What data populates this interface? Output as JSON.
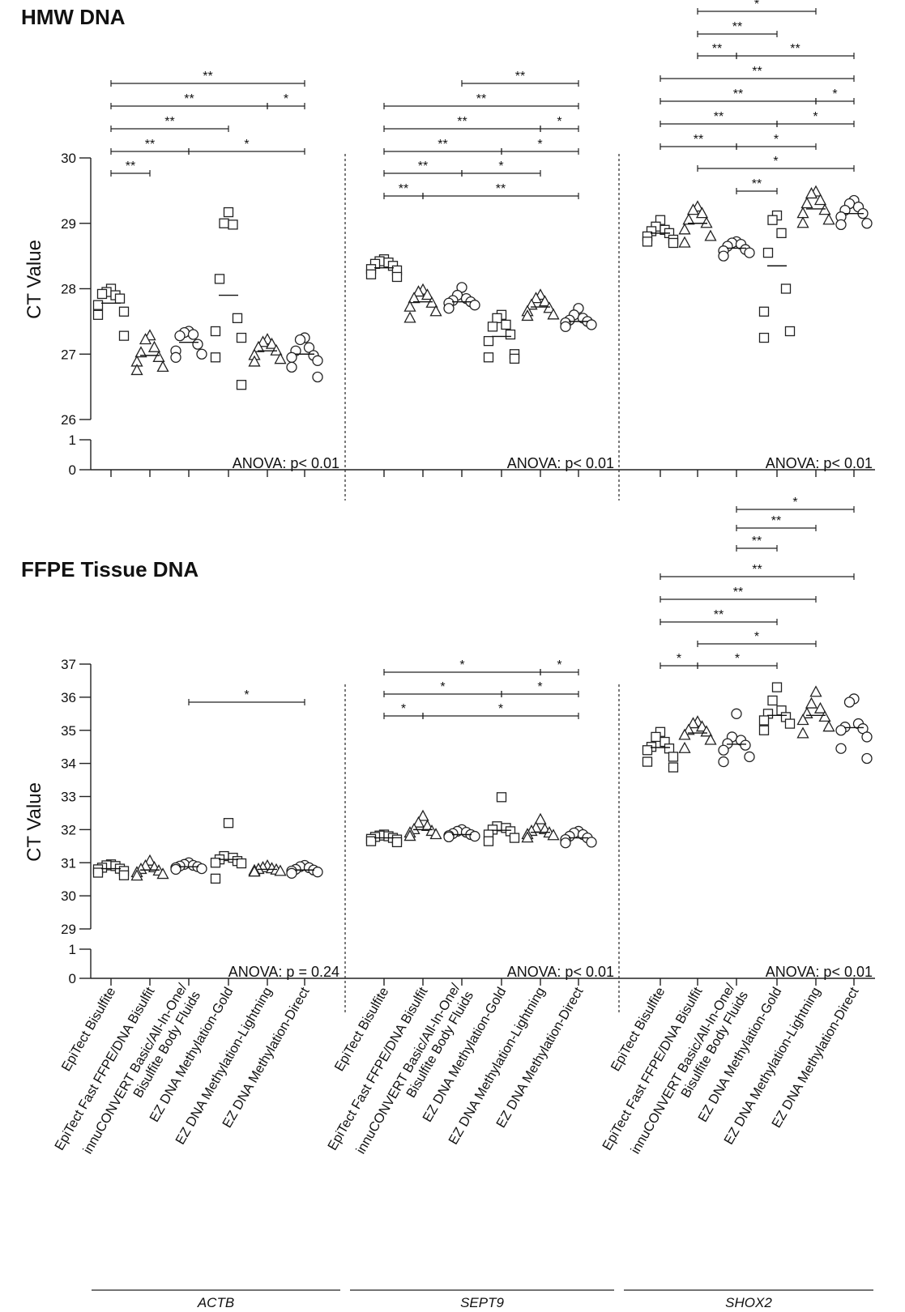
{
  "chart_data": [
    {
      "type": "scatter",
      "title": "HMW DNA",
      "ylabel": "CT Value",
      "yticks_upper": [
        26,
        27,
        28,
        29,
        30
      ],
      "yticks_lower": [
        0,
        1
      ],
      "ylim_upper": [
        26,
        30
      ],
      "genes": [
        {
          "name": "ACTB",
          "anova": "ANOVA: p< 0.01",
          "groups": [
            {
              "marker": "square",
              "mean": 27.78,
              "values": [
                28.0,
                27.95,
                27.9,
                27.92,
                27.85,
                27.75,
                27.65,
                27.6,
                27.28
              ]
            },
            {
              "marker": "triangle",
              "mean": 26.98,
              "values": [
                27.28,
                27.22,
                27.1,
                27.02,
                26.95,
                26.88,
                26.8,
                26.75
              ]
            },
            {
              "marker": "circle",
              "mean": 27.18,
              "values": [
                27.35,
                27.33,
                27.3,
                27.28,
                27.15,
                27.05,
                27.0,
                26.95
              ]
            },
            {
              "marker": "square",
              "mean": 27.9,
              "values": [
                29.17,
                29.0,
                28.98,
                28.15,
                27.55,
                27.35,
                27.25,
                26.95,
                26.53
              ]
            },
            {
              "marker": "triangle",
              "mean": 27.05,
              "values": [
                27.22,
                27.18,
                27.15,
                27.1,
                27.05,
                26.98,
                26.92,
                26.88
              ]
            },
            {
              "marker": "circle",
              "mean": 27.0,
              "values": [
                27.25,
                27.22,
                27.1,
                27.05,
                26.98,
                26.95,
                26.9,
                26.8,
                26.65
              ]
            }
          ],
          "brackets": [
            {
              "from": 1,
              "to": 2,
              "label": "**"
            },
            {
              "from": 1,
              "to": 3,
              "label": "**"
            },
            {
              "from": 3,
              "to": 6,
              "label": "*"
            },
            {
              "from": 1,
              "to": 4,
              "label": "**"
            },
            {
              "from": 1,
              "to": 5,
              "label": "**"
            },
            {
              "from": 5,
              "to": 6,
              "label": "*"
            },
            {
              "from": 1,
              "to": 6,
              "label": "**"
            }
          ]
        },
        {
          "name": "SEPT9",
          "anova": "ANOVA: p< 0.01",
          "groups": [
            {
              "marker": "square",
              "mean": 28.32,
              "values": [
                28.45,
                28.42,
                28.4,
                28.38,
                28.35,
                28.3,
                28.28,
                28.22,
                28.18
              ]
            },
            {
              "marker": "triangle",
              "mean": 27.8,
              "values": [
                27.98,
                27.95,
                27.9,
                27.85,
                27.78,
                27.72,
                27.65,
                27.55
              ]
            },
            {
              "marker": "circle",
              "mean": 27.8,
              "values": [
                28.02,
                27.9,
                27.85,
                27.82,
                27.8,
                27.78,
                27.75,
                27.7
              ]
            },
            {
              "marker": "square",
              "mean": 27.27,
              "values": [
                27.6,
                27.55,
                27.45,
                27.42,
                27.3,
                27.2,
                27.0,
                26.95,
                26.93
              ]
            },
            {
              "marker": "triangle",
              "mean": 27.72,
              "values": [
                27.9,
                27.85,
                27.8,
                27.75,
                27.7,
                27.65,
                27.6,
                27.58
              ]
            },
            {
              "marker": "circle",
              "mean": 27.5,
              "values": [
                27.7,
                27.6,
                27.55,
                27.52,
                27.5,
                27.48,
                27.45,
                27.42
              ]
            }
          ],
          "brackets": [
            {
              "from": 1,
              "to": 2,
              "label": "**"
            },
            {
              "from": 2,
              "to": 6,
              "label": "**"
            },
            {
              "from": 1,
              "to": 3,
              "label": "**"
            },
            {
              "from": 3,
              "to": 5,
              "label": "*"
            },
            {
              "from": 1,
              "to": 4,
              "label": "**"
            },
            {
              "from": 4,
              "to": 6,
              "label": "*"
            },
            {
              "from": 1,
              "to": 5,
              "label": "**"
            },
            {
              "from": 5,
              "to": 6,
              "label": "*"
            },
            {
              "from": 1,
              "to": 6,
              "label": "**"
            },
            {
              "from": 3,
              "to": 6,
              "label": "**"
            }
          ]
        },
        {
          "name": "SHOX2",
          "anova": "ANOVA: p< 0.01",
          "groups": [
            {
              "marker": "square",
              "mean": 28.85,
              "values": [
                29.05,
                28.95,
                28.9,
                28.88,
                28.85,
                28.8,
                28.75,
                28.72,
                28.7
              ]
            },
            {
              "marker": "triangle",
              "mean": 29.0,
              "values": [
                29.25,
                29.2,
                29.15,
                29.05,
                29.0,
                28.9,
                28.8,
                28.7
              ]
            },
            {
              "marker": "circle",
              "mean": 28.62,
              "values": [
                28.72,
                28.7,
                28.68,
                28.65,
                28.6,
                28.58,
                28.55,
                28.5
              ]
            },
            {
              "marker": "square",
              "mean": 28.35,
              "values": [
                29.12,
                29.05,
                28.85,
                28.55,
                28.0,
                27.65,
                27.35,
                27.25
              ]
            },
            {
              "marker": "triangle",
              "mean": 29.22,
              "values": [
                29.48,
                29.45,
                29.35,
                29.3,
                29.2,
                29.15,
                29.05,
                29.0
              ]
            },
            {
              "marker": "circle",
              "mean": 29.15,
              "values": [
                29.35,
                29.3,
                29.25,
                29.2,
                29.15,
                29.1,
                29.0,
                28.98
              ]
            }
          ],
          "brackets": [
            {
              "from": 3,
              "to": 4,
              "label": "**"
            },
            {
              "from": 2,
              "to": 6,
              "label": "*"
            },
            {
              "from": 1,
              "to": 3,
              "label": "**"
            },
            {
              "from": 3,
              "to": 5,
              "label": "*"
            },
            {
              "from": 1,
              "to": 4,
              "label": "**"
            },
            {
              "from": 4,
              "to": 6,
              "label": "*"
            },
            {
              "from": 1,
              "to": 5,
              "label": "**"
            },
            {
              "from": 5,
              "to": 6,
              "label": "*"
            },
            {
              "from": 1,
              "to": 6,
              "label": "**"
            },
            {
              "from": 2,
              "to": 3,
              "label": "**"
            },
            {
              "from": 3,
              "to": 6,
              "label": "**"
            },
            {
              "from": 2,
              "to": 4,
              "label": "**"
            },
            {
              "from": 2,
              "to": 5,
              "label": "*"
            }
          ]
        }
      ]
    },
    {
      "type": "scatter",
      "title": "FFPE Tissue DNA",
      "ylabel": "CT Value",
      "yticks_upper": [
        29,
        30,
        31,
        32,
        33,
        34,
        35,
        36,
        37
      ],
      "yticks_lower": [
        0,
        1
      ],
      "ylim_upper": [
        29,
        37
      ],
      "genes": [
        {
          "name": "ACTB",
          "anova": "ANOVA: p = 0.24",
          "groups": [
            {
              "marker": "square",
              "mean": 30.82,
              "values": [
                30.95,
                30.92,
                30.9,
                30.85,
                30.82,
                30.8,
                30.75,
                30.7,
                30.62
              ]
            },
            {
              "marker": "triangle",
              "mean": 30.78,
              "values": [
                31.05,
                30.9,
                30.85,
                30.8,
                30.75,
                30.7,
                30.65,
                30.6
              ]
            },
            {
              "marker": "circle",
              "mean": 30.88,
              "values": [
                31.0,
                30.95,
                30.92,
                30.9,
                30.88,
                30.85,
                30.82,
                30.8
              ]
            },
            {
              "marker": "square",
              "mean": 31.1,
              "values": [
                32.2,
                31.2,
                31.15,
                31.1,
                31.05,
                31.0,
                30.98,
                30.52
              ]
            },
            {
              "marker": "triangle",
              "mean": 30.8,
              "values": [
                30.9,
                30.85,
                30.82,
                30.8,
                30.78,
                30.76,
                30.74,
                30.72
              ]
            },
            {
              "marker": "circle",
              "mean": 30.78,
              "values": [
                30.92,
                30.88,
                30.85,
                30.8,
                30.78,
                30.75,
                30.72,
                30.68
              ]
            }
          ],
          "brackets": [
            {
              "from": 3,
              "to": 6,
              "label": "*"
            }
          ]
        },
        {
          "name": "SEPT9",
          "anova": "ANOVA: p< 0.01",
          "groups": [
            {
              "marker": "square",
              "mean": 31.75,
              "values": [
                31.85,
                31.82,
                31.8,
                31.78,
                31.75,
                31.72,
                31.7,
                31.65,
                31.62
              ]
            },
            {
              "marker": "triangle",
              "mean": 32.0,
              "values": [
                32.4,
                32.2,
                32.1,
                32.0,
                31.95,
                31.9,
                31.85,
                31.8
              ]
            },
            {
              "marker": "circle",
              "mean": 31.85,
              "values": [
                32.0,
                31.95,
                31.92,
                31.88,
                31.85,
                31.82,
                31.8,
                31.78
              ]
            },
            {
              "marker": "square",
              "mean": 31.98,
              "values": [
                32.98,
                32.1,
                32.05,
                32.0,
                31.95,
                31.85,
                31.75,
                31.65
              ]
            },
            {
              "marker": "triangle",
              "mean": 31.92,
              "values": [
                32.3,
                32.05,
                32.0,
                31.95,
                31.9,
                31.85,
                31.82,
                31.75
              ]
            },
            {
              "marker": "circle",
              "mean": 31.75,
              "values": [
                31.95,
                31.9,
                31.85,
                31.8,
                31.75,
                31.7,
                31.62,
                31.6
              ]
            }
          ],
          "brackets": [
            {
              "from": 1,
              "to": 2,
              "label": "*"
            },
            {
              "from": 2,
              "to": 6,
              "label": "*"
            },
            {
              "from": 1,
              "to": 4,
              "label": "*"
            },
            {
              "from": 4,
              "to": 6,
              "label": "*"
            },
            {
              "from": 1,
              "to": 5,
              "label": "*"
            },
            {
              "from": 5,
              "to": 6,
              "label": "*"
            }
          ]
        },
        {
          "name": "SHOX2",
          "anova": "ANOVA: p< 0.01",
          "groups": [
            {
              "marker": "square",
              "mean": 34.48,
              "values": [
                34.95,
                34.8,
                34.65,
                34.5,
                34.45,
                34.4,
                34.2,
                34.05,
                33.88
              ]
            },
            {
              "marker": "triangle",
              "mean": 34.92,
              "values": [
                35.25,
                35.2,
                35.1,
                35.0,
                34.95,
                34.85,
                34.7,
                34.45
              ]
            },
            {
              "marker": "circle",
              "mean": 34.58,
              "values": [
                35.5,
                34.8,
                34.7,
                34.6,
                34.55,
                34.4,
                34.2,
                34.05
              ]
            },
            {
              "marker": "square",
              "mean": 35.45,
              "values": [
                36.3,
                35.9,
                35.6,
                35.5,
                35.4,
                35.3,
                35.2,
                35.0
              ]
            },
            {
              "marker": "triangle",
              "mean": 35.45,
              "values": [
                36.15,
                35.8,
                35.65,
                35.5,
                35.4,
                35.3,
                35.1,
                34.9
              ]
            },
            {
              "marker": "circle",
              "mean": 35.08,
              "values": [
                35.95,
                35.85,
                35.2,
                35.1,
                35.05,
                35.0,
                34.8,
                34.45,
                34.15
              ]
            }
          ],
          "brackets": [
            {
              "from": 1,
              "to": 2,
              "label": "*"
            },
            {
              "from": 2,
              "to": 4,
              "label": "*"
            },
            {
              "from": 2,
              "to": 5,
              "label": "*"
            },
            {
              "from": 1,
              "to": 4,
              "label": "**"
            },
            {
              "from": 1,
              "to": 5,
              "label": "**"
            },
            {
              "from": 1,
              "to": 6,
              "label": "**"
            },
            {
              "from": 3,
              "to": 4,
              "label": "**"
            },
            {
              "from": 3,
              "to": 5,
              "label": "**"
            },
            {
              "from": 3,
              "to": 6,
              "label": "*"
            }
          ]
        }
      ]
    }
  ],
  "categories": [
    [
      "EpiTect Bisulfite"
    ],
    [
      "EpiTect Fast FFPE/DNA Bisulfit"
    ],
    [
      "innuCONVERT Basic/All-In-One/",
      "Bisulfite  Body Fluids"
    ],
    [
      "EZ DNA Methylation-Gold"
    ],
    [
      "EZ DNA Methylation-Lightning"
    ],
    [
      "EZ DNA Methylation-Direct"
    ]
  ],
  "genes": [
    "ACTB",
    "SEPT9",
    "SHOX2"
  ]
}
